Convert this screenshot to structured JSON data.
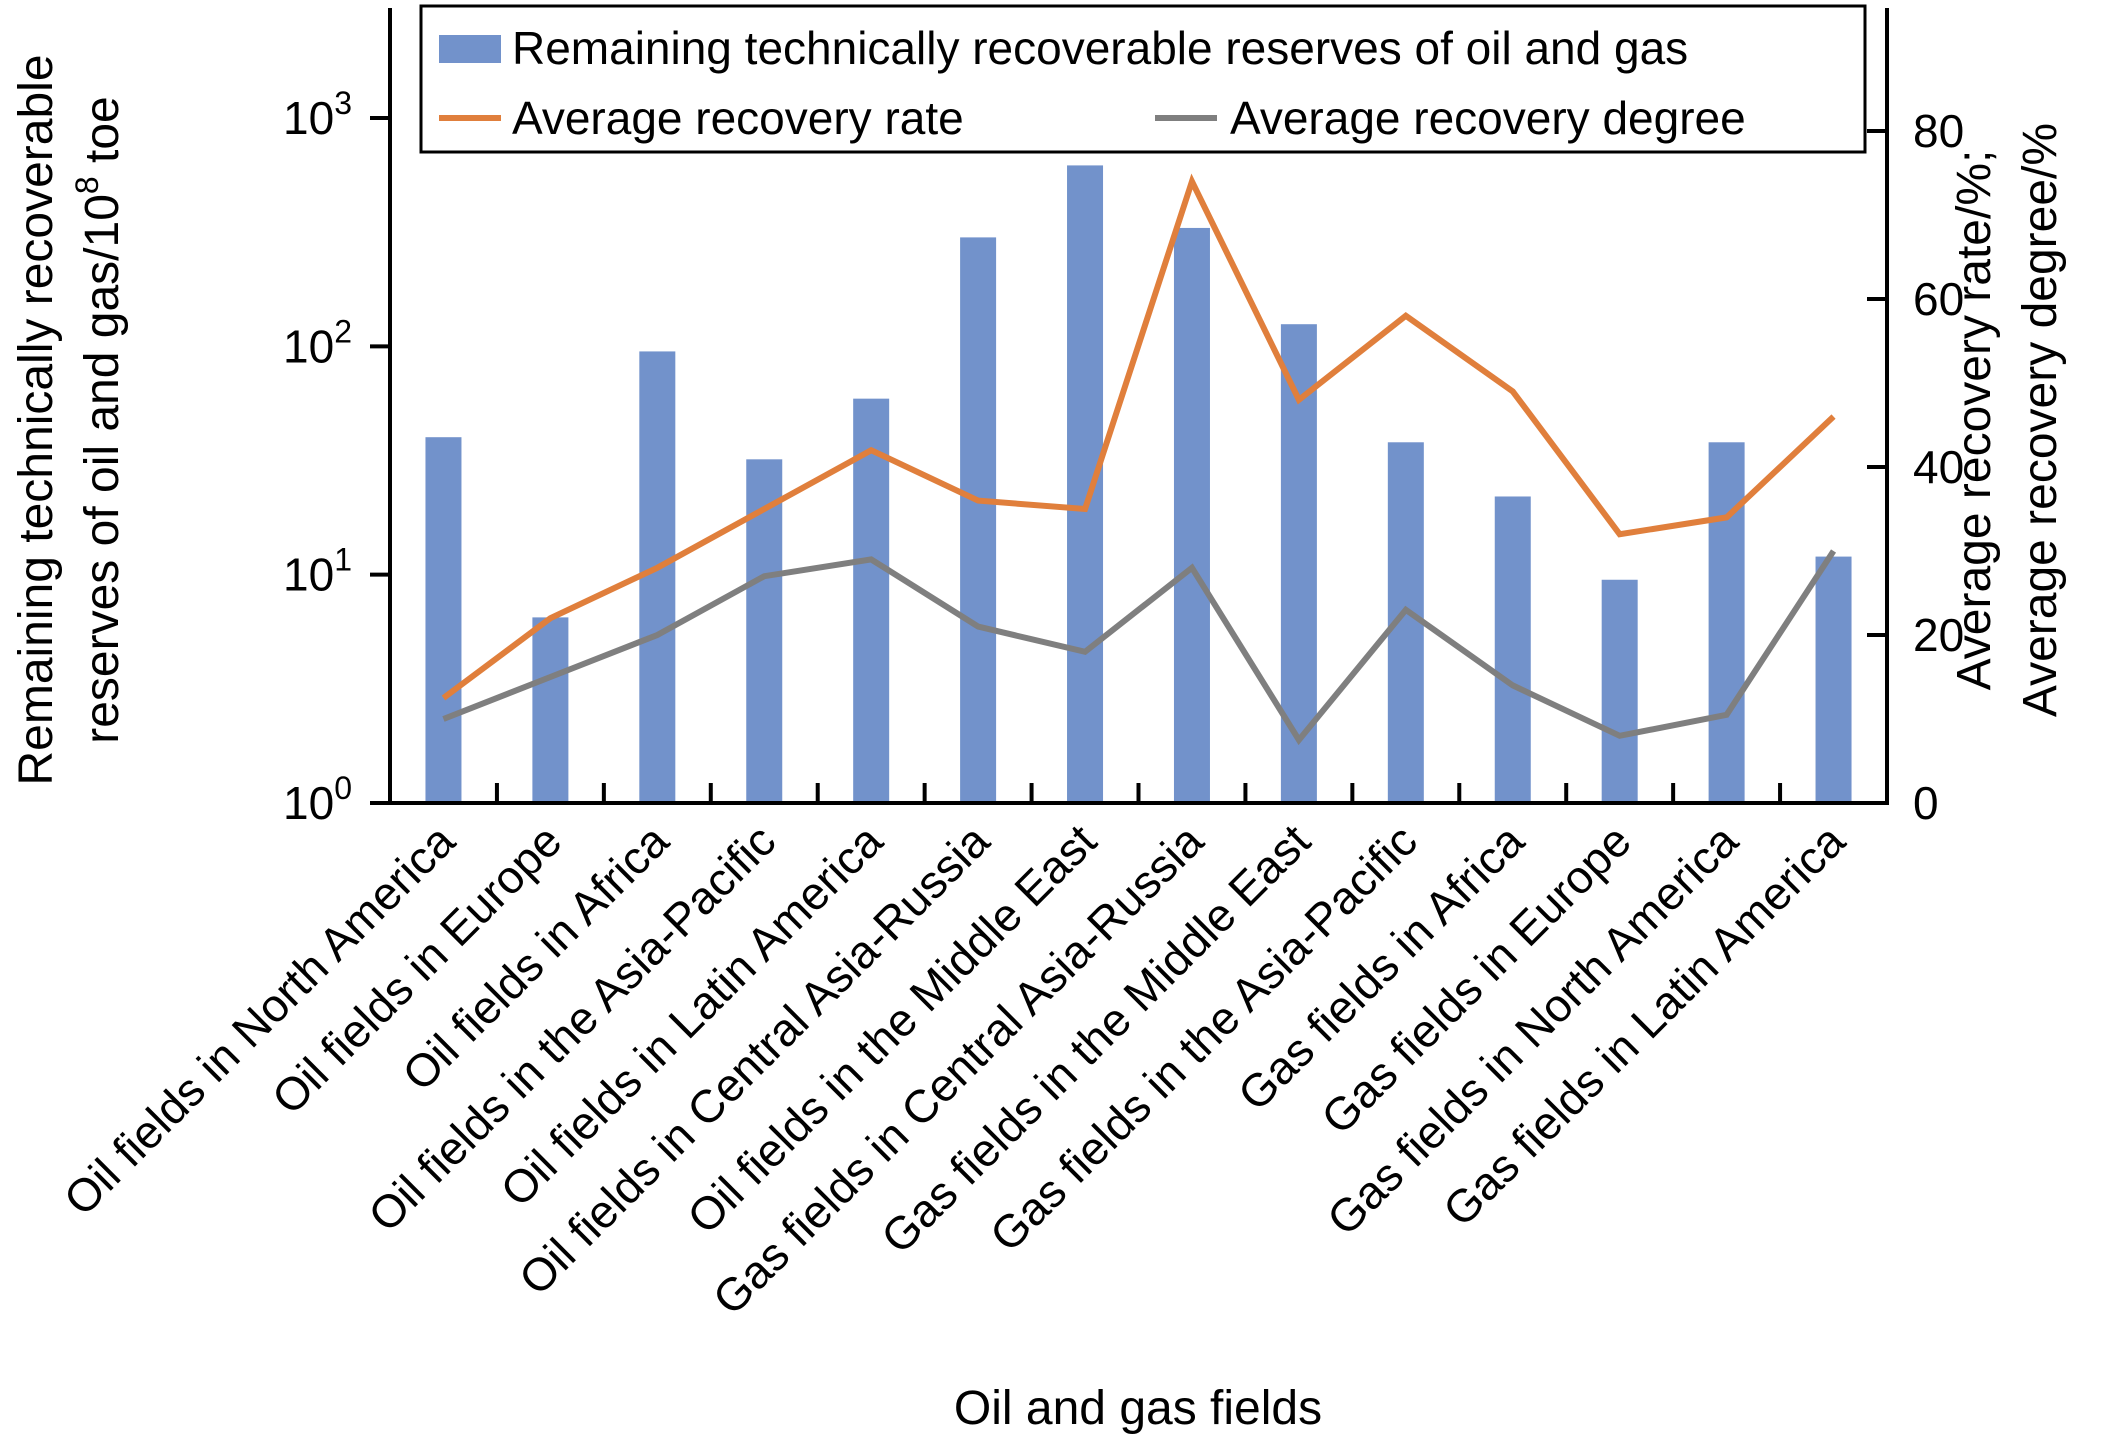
{
  "chart_data": {
    "type": "combo-bar-line",
    "title": "",
    "categories": [
      "Oil fields in North America",
      "Oil fields in Europe",
      "Oil fields in Africa",
      "Oil fields in the Asia-Pacific",
      "Oil fields in Latin America",
      "Oil fields in Central Asia-Russia",
      "Oil fields in the Middle East",
      "Gas fields in Central Asia-Russia",
      "Gas fields in the Middle East",
      "Gas fields in the Asia-Pacific",
      "Gas fields in Africa",
      "Gas fields in Europe",
      "Gas fields in North America",
      "Gas fields in Latin America"
    ],
    "series": [
      {
        "name": "Remaining technically recoverable reserves of oil and gas",
        "type": "bar",
        "axis": "left-log",
        "color": "#7292CB",
        "values": [
          40,
          6.5,
          95,
          32,
          59,
          300,
          620,
          330,
          125,
          38,
          22,
          9.5,
          38,
          12
        ]
      },
      {
        "name": "Average recovery rate",
        "type": "line",
        "axis": "right",
        "color": "#E07F3C",
        "values": [
          12.5,
          22,
          28,
          35,
          42,
          36,
          35,
          74,
          48,
          58,
          49,
          32,
          34,
          46
        ]
      },
      {
        "name": "Average recovery degree",
        "type": "line",
        "axis": "right",
        "color": "#7F7F7F",
        "values": [
          10,
          15,
          20,
          27,
          29,
          21,
          18,
          28,
          7.5,
          23,
          14,
          8,
          10.5,
          30
        ]
      }
    ],
    "left_axis": {
      "scale": "log",
      "min": 1,
      "max": 1000,
      "tick_exponents": [
        0,
        1,
        2,
        3
      ],
      "tick_base": "10",
      "title_line1": "Remaining technically recoverable",
      "title_line2_pre": "reserves of oil and gas/10",
      "title_line2_sup": "8",
      "title_line2_post": " toe"
    },
    "right_axis": {
      "scale": "linear",
      "min": 0,
      "max": 80,
      "ticks": [
        0,
        20,
        40,
        60,
        80
      ],
      "title_line1": "Average recovery rate/%;",
      "title_line2": "Average recovery degree/%"
    },
    "x_axis": {
      "title": "Oil and gas fields"
    },
    "grid": false,
    "legend_position": "top"
  }
}
